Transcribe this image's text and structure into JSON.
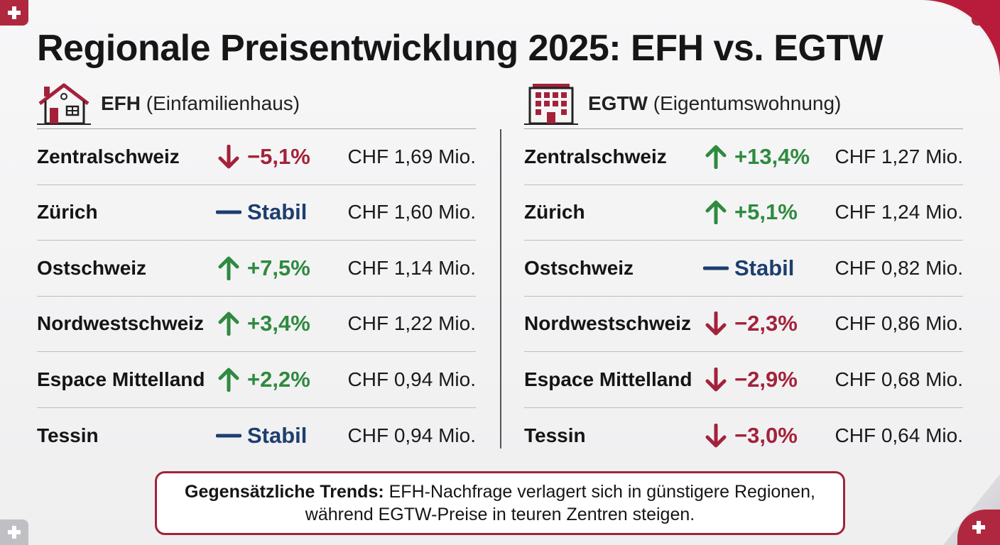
{
  "title": "Regionale Preisentwicklung 2025: EFH vs. EGTW",
  "efh": {
    "abbr": "EFH",
    "full": "(Einfamilienhaus)",
    "icon": "house-icon",
    "rows": [
      {
        "region": "Zentralschweiz",
        "trend": "down",
        "change": "−5,1%",
        "price": "CHF 1,69 Mio."
      },
      {
        "region": "Zürich",
        "trend": "stable",
        "change": "Stabil",
        "price": "CHF 1,60 Mio."
      },
      {
        "region": "Ostschweiz",
        "trend": "up",
        "change": "+7,5%",
        "price": "CHF 1,14 Mio."
      },
      {
        "region": "Nordwestschweiz",
        "trend": "up",
        "change": "+3,4%",
        "price": "CHF 1,22 Mio."
      },
      {
        "region": "Espace Mittelland",
        "trend": "up",
        "change": "+2,2%",
        "price": "CHF 0,94 Mio."
      },
      {
        "region": "Tessin",
        "trend": "stable",
        "change": "Stabil",
        "price": "CHF 0,94 Mio."
      }
    ]
  },
  "egtw": {
    "abbr": "EGTW",
    "full": "(Eigentumswohnung)",
    "icon": "apartment-building-icon",
    "rows": [
      {
        "region": "Zentralschweiz",
        "trend": "up",
        "change": "+13,4%",
        "price": "CHF 1,27 Mio."
      },
      {
        "region": "Zürich",
        "trend": "up",
        "change": "+5,1%",
        "price": "CHF 1,24 Mio."
      },
      {
        "region": "Ostschweiz",
        "trend": "stable",
        "change": "Stabil",
        "price": "CHF 0,82 Mio."
      },
      {
        "region": "Nordwestschweiz",
        "trend": "down",
        "change": "−2,3%",
        "price": "CHF 0,86 Mio."
      },
      {
        "region": "Espace Mittelland",
        "trend": "down",
        "change": "−2,9%",
        "price": "CHF 0,68 Mio."
      },
      {
        "region": "Tessin",
        "trend": "down",
        "change": "−3,0%",
        "price": "CHF 0,64 Mio."
      }
    ]
  },
  "note": {
    "bold": "Gegensätzliche Trends:",
    "line1": " EFH-Nachfrage verlagert sich in günstigere Regionen,",
    "line2": "während EGTW-Preise in teuren Zentren steigen."
  },
  "colors": {
    "up": "#2f8a3f",
    "down": "#a3223a",
    "stable": "#1d3e6e",
    "accent": "#b0283f"
  }
}
